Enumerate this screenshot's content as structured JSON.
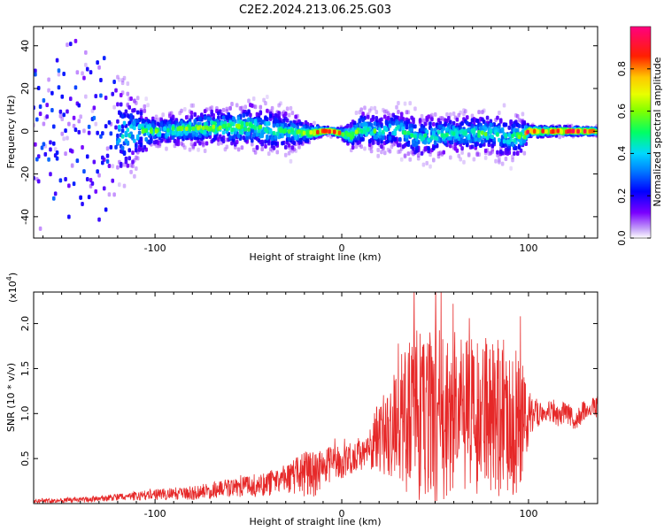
{
  "title": "C2E2.2024.213.06.25.G03",
  "chart_data": [
    {
      "type": "heatmap",
      "xlabel": "Height of straight line (km)",
      "ylabel": "Frequency (Hz)",
      "xlim": [
        -165,
        137
      ],
      "ylim": [
        -50,
        49
      ],
      "xticks": [
        -100,
        0,
        100
      ],
      "yticks": [
        -40,
        -20,
        0,
        20,
        40
      ],
      "colorbar": {
        "label": "Normalized spectral amplitude",
        "range": [
          0,
          1
        ],
        "ticks": [
          0.0,
          0.2,
          0.4,
          0.6,
          0.8
        ],
        "colormap": [
          "#ffffff",
          "#c8a8f8",
          "#5a00ff",
          "#0000ff",
          "#00c8ff",
          "#00ff64",
          "#c8ff00",
          "#ffc800",
          "#ff0000",
          "#ff0080"
        ]
      },
      "band_profile": {
        "x": [
          -165,
          -130,
          -100,
          -70,
          -50,
          -40,
          -30,
          -20,
          -10,
          -5,
          0,
          5,
          10,
          20,
          30,
          40,
          50,
          60,
          80,
          90,
          97,
          100,
          137
        ],
        "center_hz": [
          -2,
          -1,
          0,
          2,
          2,
          1,
          0,
          -1,
          0,
          0,
          -1,
          -2,
          1,
          0,
          1,
          -3,
          -2,
          -1,
          -1,
          -3,
          -2,
          0,
          0
        ],
        "spread_hz": [
          45,
          40,
          8,
          10,
          12,
          13,
          12,
          7,
          2,
          2,
          3,
          8,
          10,
          11,
          12,
          14,
          12,
          11,
          12,
          13,
          10,
          3,
          2
        ],
        "peak_amplitude": [
          0.35,
          0.4,
          0.55,
          0.6,
          0.6,
          0.55,
          0.5,
          0.6,
          0.95,
          0.9,
          0.7,
          0.6,
          0.55,
          0.5,
          0.5,
          0.45,
          0.5,
          0.5,
          0.55,
          0.5,
          0.6,
          0.9,
          0.9
        ]
      }
    },
    {
      "type": "line",
      "xlabel": "Height of straight line (km)",
      "ylabel": "SNR (10 * v/v)",
      "yscale_note": "(x10",
      "yscale_exp": "4",
      "xlim": [
        -165,
        137
      ],
      "ylim": [
        0,
        23500
      ],
      "xticks": [
        -100,
        0,
        100
      ],
      "yticks": [
        5000,
        10000,
        15000,
        20000
      ],
      "ytick_labels": [
        "0.5",
        "1.0",
        "1.5",
        "2.0"
      ],
      "color": "#e62828",
      "envelope": {
        "x": [
          -165,
          -140,
          -120,
          -100,
          -80,
          -60,
          -50,
          -40,
          -30,
          -25,
          -20,
          -15,
          -10,
          -5,
          0,
          5,
          10,
          15,
          20,
          25,
          30,
          35,
          40,
          45,
          50,
          55,
          60,
          65,
          70,
          75,
          80,
          85,
          90,
          95,
          100,
          105,
          110,
          115,
          120,
          125,
          130,
          137
        ],
        "mean": [
          300,
          400,
          700,
          1000,
          1200,
          1700,
          1900,
          2200,
          2800,
          3000,
          3300,
          3200,
          4000,
          4300,
          4600,
          5000,
          5600,
          6000,
          7600,
          8300,
          9000,
          9600,
          9800,
          10000,
          9800,
          9600,
          9700,
          9800,
          9500,
          9600,
          9800,
          9900,
          9500,
          9300,
          9500,
          10000,
          10500,
          9700,
          10200,
          9200,
          10400,
          10800
        ],
        "amplitude": [
          250,
          300,
          400,
          600,
          800,
          1000,
          1200,
          1400,
          1600,
          2000,
          2500,
          2500,
          2200,
          2000,
          1800,
          1800,
          2000,
          2500,
          4000,
          5500,
          7000,
          8500,
          9500,
          10000,
          10000,
          9500,
          9000,
          8500,
          8500,
          8500,
          9000,
          9500,
          9000,
          8000,
          3000,
          1500,
          1200,
          1200,
          1200,
          1200,
          1200,
          1200
        ]
      }
    }
  ]
}
